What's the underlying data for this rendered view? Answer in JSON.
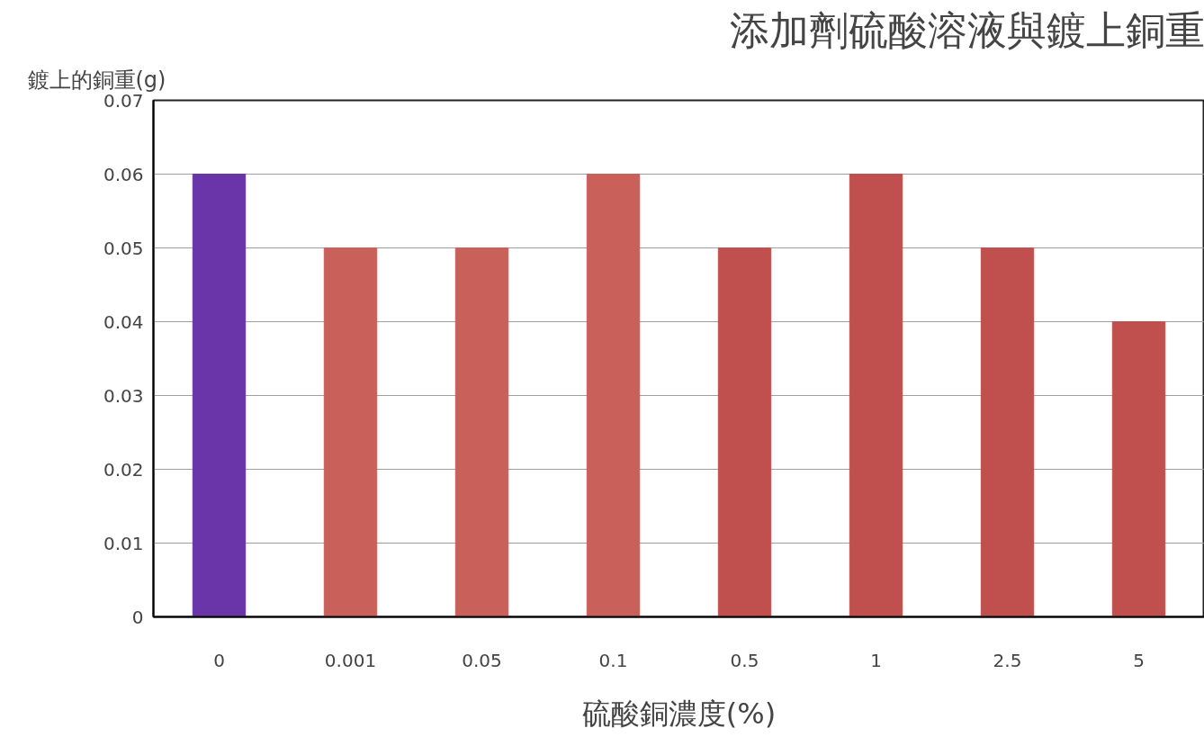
{
  "chart_data": {
    "type": "bar",
    "title": "添加劑硫酸溶液與鍍上銅重",
    "xlabel": "硫酸銅濃度(%)",
    "ylabel": "鍍上的銅重(g)",
    "categories": [
      "0",
      "0.001",
      "0.05",
      "0.1",
      "0.5",
      "1",
      "2.5",
      "5"
    ],
    "values": [
      0.06,
      0.05,
      0.05,
      0.06,
      0.05,
      0.06,
      0.05,
      0.04
    ],
    "colors": [
      "#6a35a8",
      "#c9605a",
      "#c9605a",
      "#c9605a",
      "#c0504d",
      "#c0504d",
      "#c0504d",
      "#c0504d"
    ],
    "ylim": [
      0,
      0.07
    ],
    "yticks": [
      {
        "value": 0,
        "label": "0"
      },
      0.01,
      0.02,
      0.03,
      0.04,
      0.05,
      0.06,
      0.07
    ],
    "grid": "y"
  }
}
